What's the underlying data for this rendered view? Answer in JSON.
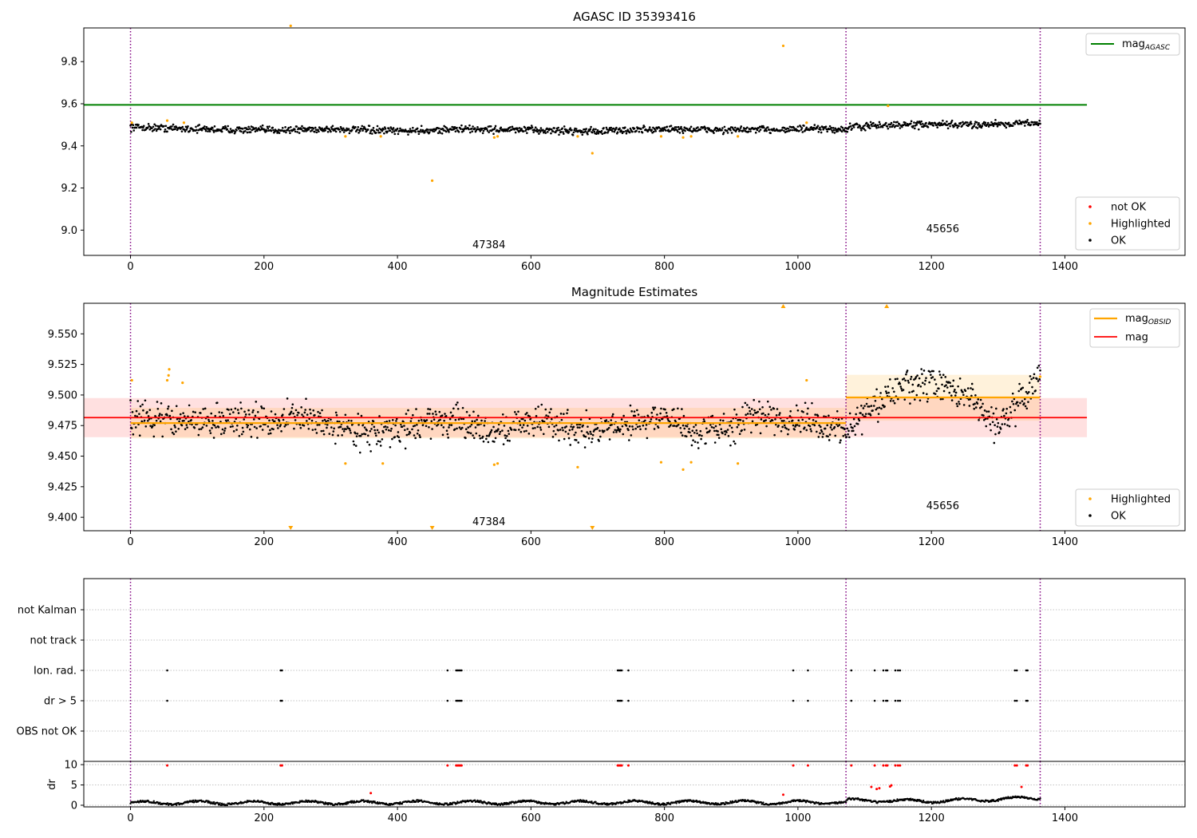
{
  "colors": {
    "ok": "#000000",
    "highlighted": "#ffa500",
    "not_ok": "#ff0000",
    "mag_agasc": "#008000",
    "mag_obsid": "#ffa500",
    "mag": "#ff0000",
    "obs_divider": "#800080",
    "grid": "#b0b0b0"
  },
  "obsids": [
    {
      "label": "47384",
      "start": 0,
      "end": 1072
    },
    {
      "label": "45656",
      "start": 1072,
      "end": 1363
    }
  ],
  "chart_data": [
    {
      "type": "scatter",
      "title": "AGASC ID 35393416",
      "xlabel": "",
      "ylabel": "",
      "xlim": [
        -70,
        1580
      ],
      "ylim": [
        8.88,
        9.96
      ],
      "xticks": [
        0,
        200,
        400,
        600,
        800,
        1000,
        1200,
        1400
      ],
      "yticks": [
        9.0,
        9.2,
        9.4,
        9.6,
        9.8
      ],
      "ytick_labels": [
        "9.0",
        "9.2",
        "9.4",
        "9.6",
        "9.8"
      ],
      "grid": false,
      "legend_upper": {
        "placement": "upper-right",
        "entries": [
          {
            "label": "mag",
            "subscript": "AGASC"
          }
        ]
      },
      "legend_lower": {
        "placement": "lower-right",
        "entries": [
          {
            "label": "not OK"
          },
          {
            "label": "Highlighted"
          },
          {
            "label": "OK"
          }
        ]
      },
      "mag_agasc": {
        "value": 9.595,
        "x_range": [
          -70,
          1433
        ]
      },
      "ok_trend": [
        [
          0,
          9.49
        ],
        [
          100,
          9.48
        ],
        [
          200,
          9.475
        ],
        [
          300,
          9.48
        ],
        [
          400,
          9.47
        ],
        [
          500,
          9.48
        ],
        [
          600,
          9.475
        ],
        [
          700,
          9.47
        ],
        [
          800,
          9.48
        ],
        [
          900,
          9.475
        ],
        [
          1000,
          9.48
        ],
        [
          1072,
          9.478
        ],
        [
          1080,
          9.49
        ],
        [
          1150,
          9.5
        ],
        [
          1250,
          9.5
        ],
        [
          1363,
          9.51
        ]
      ],
      "ok_spread": 0.012,
      "highlighted_points": [
        [
          2,
          9.51
        ],
        [
          55,
          9.52
        ],
        [
          80,
          9.51
        ],
        [
          240,
          9.97
        ],
        [
          322,
          9.445
        ],
        [
          375,
          9.445
        ],
        [
          452,
          9.235
        ],
        [
          545,
          9.44
        ],
        [
          550,
          9.445
        ],
        [
          670,
          9.445
        ],
        [
          692,
          9.365
        ],
        [
          795,
          9.445
        ],
        [
          828,
          9.44
        ],
        [
          840,
          9.445
        ],
        [
          910,
          9.445
        ],
        [
          978,
          9.875
        ],
        [
          1013,
          9.51
        ],
        [
          1135,
          9.59
        ]
      ],
      "not_ok_points": []
    },
    {
      "type": "scatter",
      "title": "Magnitude Estimates",
      "xlabel": "",
      "ylabel": "",
      "xlim": [
        -70,
        1580
      ],
      "ylim": [
        9.389,
        9.575
      ],
      "xticks": [
        0,
        200,
        400,
        600,
        800,
        1000,
        1200,
        1400
      ],
      "yticks": [
        9.4,
        9.425,
        9.45,
        9.475,
        9.5,
        9.525,
        9.55
      ],
      "ytick_labels": [
        "9.400",
        "9.425",
        "9.450",
        "9.475",
        "9.500",
        "9.525",
        "9.550"
      ],
      "grid": false,
      "legend_upper": {
        "placement": "upper-right",
        "entries": [
          {
            "label": "mag",
            "subscript": "OBSID"
          },
          {
            "label": "mag"
          }
        ]
      },
      "legend_lower": {
        "placement": "lower-right",
        "entries": [
          {
            "label": "Highlighted"
          },
          {
            "label": "OK"
          }
        ]
      },
      "mag_overall": {
        "value": 9.4815,
        "band": [
          9.4655,
          9.4975
        ],
        "x_range": [
          -70,
          1433
        ]
      },
      "mag_obsid": [
        {
          "x_range": [
            0,
            1072
          ],
          "value": 9.477,
          "band": [
            9.4645,
            9.4895
          ]
        },
        {
          "x_range": [
            1072,
            1363
          ],
          "value": 9.498,
          "band": [
            9.479,
            9.5165
          ]
        }
      ],
      "ok_trend": [
        [
          0,
          9.482
        ],
        [
          100,
          9.478
        ],
        [
          150,
          9.48
        ],
        [
          200,
          9.478
        ],
        [
          250,
          9.482
        ],
        [
          300,
          9.476
        ],
        [
          350,
          9.47
        ],
        [
          400,
          9.47
        ],
        [
          450,
          9.48
        ],
        [
          500,
          9.476
        ],
        [
          550,
          9.47
        ],
        [
          600,
          9.48
        ],
        [
          650,
          9.475
        ],
        [
          700,
          9.47
        ],
        [
          750,
          9.478
        ],
        [
          800,
          9.482
        ],
        [
          850,
          9.468
        ],
        [
          900,
          9.475
        ],
        [
          950,
          9.485
        ],
        [
          1000,
          9.478
        ],
        [
          1072,
          9.472
        ],
        [
          1090,
          9.48
        ],
        [
          1150,
          9.505
        ],
        [
          1200,
          9.51
        ],
        [
          1250,
          9.5
        ],
        [
          1300,
          9.475
        ],
        [
          1363,
          9.515
        ]
      ],
      "ok_spread": 0.009,
      "highlighted_points": [
        [
          2,
          9.512
        ],
        [
          55,
          9.512
        ],
        [
          57,
          9.516
        ],
        [
          58,
          9.521
        ],
        [
          78,
          9.51
        ],
        [
          322,
          9.444
        ],
        [
          378,
          9.444
        ],
        [
          545,
          9.443
        ],
        [
          550,
          9.444
        ],
        [
          670,
          9.441
        ],
        [
          795,
          9.445
        ],
        [
          828,
          9.439
        ],
        [
          840,
          9.445
        ],
        [
          910,
          9.444
        ],
        [
          1013,
          9.512
        ],
        [
          1363,
          9.515
        ]
      ],
      "out_of_range_up": [
        978,
        1133
      ],
      "out_of_range_down": [
        240,
        452,
        692
      ]
    },
    {
      "type": "scatter",
      "title": "",
      "xlabel": "",
      "ylabel": "",
      "xlim": [
        -70,
        1580
      ],
      "categories": [
        "not Kalman",
        "not track",
        "Ion. rad.",
        "dr > 5",
        "OBS not OK"
      ],
      "grid": true,
      "flag_x_values": [
        55,
        225,
        227,
        475,
        488,
        490,
        492,
        494,
        496,
        730,
        732,
        734,
        736,
        746,
        993,
        1015,
        1080,
        1115,
        1128,
        1132,
        1134,
        1146,
        1150,
        1153,
        1325,
        1328,
        1342,
        1344
      ],
      "flagged_categories": [
        "Ion. rad.",
        "dr > 5"
      ]
    },
    {
      "type": "scatter",
      "title": "",
      "xlabel": "",
      "ylabel": "dr",
      "xlim": [
        -70,
        1580
      ],
      "ylim": [
        -0.4,
        10.8
      ],
      "yticks": [
        0,
        5,
        10
      ],
      "ytick_labels": [
        "0",
        "5",
        "10"
      ],
      "grid": true,
      "ok_trend": [
        [
          0,
          0.6
        ],
        [
          1072,
          0.7
        ],
        [
          1075,
          1.2
        ],
        [
          1200,
          1.0
        ],
        [
          1363,
          1.8
        ]
      ],
      "ok_spread": 0.5,
      "not_ok_points": [
        [
          55,
          9.8
        ],
        [
          225,
          9.8
        ],
        [
          227,
          9.8
        ],
        [
          360,
          3.0
        ],
        [
          475,
          9.8
        ],
        [
          488,
          9.8
        ],
        [
          490,
          9.8
        ],
        [
          492,
          9.8
        ],
        [
          494,
          9.8
        ],
        [
          496,
          9.8
        ],
        [
          730,
          9.8
        ],
        [
          732,
          9.8
        ],
        [
          734,
          9.8
        ],
        [
          736,
          9.8
        ],
        [
          746,
          9.8
        ],
        [
          978,
          2.6
        ],
        [
          993,
          9.8
        ],
        [
          1015,
          9.8
        ],
        [
          1080,
          9.8
        ],
        [
          1110,
          4.5
        ],
        [
          1115,
          9.8
        ],
        [
          1118,
          4.0
        ],
        [
          1122,
          4.2
        ],
        [
          1128,
          9.8
        ],
        [
          1132,
          9.8
        ],
        [
          1134,
          9.8
        ],
        [
          1138,
          4.6
        ],
        [
          1140,
          4.9
        ],
        [
          1146,
          9.8
        ],
        [
          1150,
          9.8
        ],
        [
          1153,
          9.8
        ],
        [
          1325,
          9.8
        ],
        [
          1328,
          9.8
        ],
        [
          1335,
          4.5
        ],
        [
          1342,
          9.8
        ],
        [
          1344,
          9.8
        ]
      ]
    }
  ]
}
